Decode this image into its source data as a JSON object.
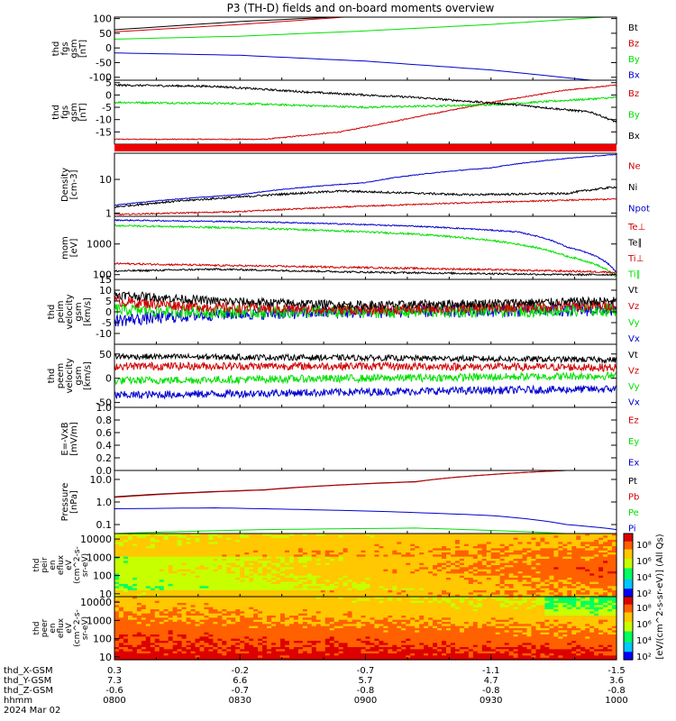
{
  "title": "P3 (TH-D) fields and on-board moments overview",
  "colors": {
    "black": "#000000",
    "red": "#d00000",
    "green": "#00e000",
    "blue": "#0000d0"
  },
  "chart_data": {
    "type": "line",
    "panels": [
      {
        "id": "fgs-gsm-1",
        "ylabel_lines": [
          "thd",
          "fgs",
          "gsm",
          "[nT]"
        ],
        "ylim": [
          -110,
          105
        ],
        "yticks": [
          "100",
          "50",
          "0",
          "-50",
          "-100"
        ],
        "ytick_values": [
          100,
          50,
          0,
          -50,
          -100
        ],
        "legend": [
          {
            "label": "Bt",
            "color": "#000000"
          },
          {
            "label": "Bz",
            "color": "#d00000"
          },
          {
            "label": "By",
            "color": "#00e000"
          },
          {
            "label": "Bx",
            "color": "#0000d0"
          }
        ],
        "series": [
          {
            "color": "#000000",
            "x": [
              0,
              0.25,
              0.5
            ],
            "y": [
              62,
              90,
              110
            ],
            "noise": 0
          },
          {
            "color": "#d00000",
            "x": [
              0,
              0.25,
              0.5
            ],
            "y": [
              55,
              80,
              110
            ],
            "noise": 0
          },
          {
            "color": "#00e000",
            "x": [
              0,
              0.25,
              0.5,
              0.75,
              1
            ],
            "y": [
              30,
              40,
              58,
              80,
              108
            ],
            "noise": 0
          },
          {
            "color": "#0000d0",
            "x": [
              0,
              0.25,
              0.5,
              0.75,
              0.95
            ],
            "y": [
              -17,
              -25,
              -45,
              -75,
              -110
            ],
            "noise": 0
          }
        ]
      },
      {
        "id": "fgs-gsm-2",
        "ylabel_lines": [
          "thd",
          "fgs",
          "gsm",
          "[nT]"
        ],
        "ylim": [
          -20,
          6
        ],
        "yticks": [
          "5",
          "0",
          "-5",
          "-10",
          "-15"
        ],
        "ytick_values": [
          5,
          0,
          -5,
          -10,
          -15
        ],
        "legend": [
          {
            "label": "Bz",
            "color": "#d00000"
          },
          {
            "label": "By",
            "color": "#00e000"
          },
          {
            "label": "Bx",
            "color": "#000000"
          }
        ],
        "series": [
          {
            "color": "#d00000",
            "x": [
              0,
              0.3,
              0.45,
              0.6,
              0.75,
              0.9,
              1
            ],
            "y": [
              -18,
              -18,
              -15,
              -9,
              -3,
              2,
              4
            ],
            "noise": 0.2
          },
          {
            "color": "#00e000",
            "x": [
              0,
              0.25,
              0.5,
              0.75,
              1
            ],
            "y": [
              -3,
              -3.5,
              -5,
              -4,
              -1
            ],
            "noise": 0.4
          },
          {
            "color": "#000000",
            "x": [
              0,
              0.2,
              0.4,
              0.6,
              0.8,
              0.95,
              1
            ],
            "y": [
              4,
              3.5,
              1,
              -1,
              -4,
              -7,
              -11
            ],
            "noise": 0.4
          }
        ]
      },
      {
        "id": "density",
        "ylabel_lines": [
          "Density",
          "[cm-3]"
        ],
        "ylim_log": [
          0.8,
          60
        ],
        "yticks": [
          "10",
          "1"
        ],
        "ytick_values": [
          10,
          1
        ],
        "legend": [
          {
            "label": "Ne",
            "color": "#d00000"
          },
          {
            "label": "Ni",
            "color": "#000000"
          },
          {
            "label": "Npot",
            "color": "#0000d0"
          }
        ],
        "series": [
          {
            "color": "#d00000",
            "x": [
              0,
              0.25,
              0.5,
              0.75,
              1
            ],
            "y": [
              0.9,
              1.1,
              1.6,
              2.1,
              2.6
            ],
            "noise": 0.02
          },
          {
            "color": "#000000",
            "x": [
              0,
              0.25,
              0.45,
              0.7,
              0.9,
              1
            ],
            "y": [
              1.5,
              3,
              4.5,
              3.5,
              3.8,
              6
            ],
            "noise": 0.03
          },
          {
            "color": "#0000d0",
            "x": [
              0,
              0.25,
              0.5,
              0.75,
              1
            ],
            "y": [
              1.7,
              3.5,
              8,
              22,
              55
            ],
            "noise": 0.01
          }
        ]
      },
      {
        "id": "mom-temp",
        "ylabel_lines": [
          "mom",
          "[eV]"
        ],
        "ylim_log": [
          70,
          8000
        ],
        "yticks": [
          "1000",
          "100"
        ],
        "ytick_values": [
          1000,
          100
        ],
        "legend": [
          {
            "label": "Te⊥",
            "color": "#d00000"
          },
          {
            "label": "Te∥",
            "color": "#000000"
          },
          {
            "label": "Ti⊥",
            "color": "#d00000"
          },
          {
            "label": "Ti∥",
            "color": "#00e000"
          }
        ],
        "series": [
          {
            "color": "#0000d0",
            "x": [
              0,
              0.3,
              0.6,
              0.8,
              0.9,
              1
            ],
            "y": [
              6000,
              5200,
              3800,
              2500,
              800,
              110
            ],
            "noise": 0.02
          },
          {
            "color": "#00e000",
            "x": [
              0,
              0.3,
              0.6,
              0.75,
              0.9,
              1
            ],
            "y": [
              4000,
              3200,
              2100,
              1300,
              400,
              80
            ],
            "noise": 0.03
          },
          {
            "color": "#d00000",
            "x": [
              0,
              0.2,
              0.5,
              0.7,
              0.9,
              1
            ],
            "y": [
              230,
              200,
              170,
              150,
              130,
              120
            ],
            "noise": 0.03
          },
          {
            "color": "#000000",
            "x": [
              0,
              0.2,
              0.5,
              0.7,
              0.9,
              1
            ],
            "y": [
              130,
              150,
              120,
              110,
              100,
              100
            ],
            "noise": 0.03
          }
        ]
      },
      {
        "id": "peim-velocity",
        "ylabel_lines": [
          "thd",
          "peim",
          "velocity",
          "gsm",
          "[km/s]"
        ],
        "ylim": [
          -15,
          15
        ],
        "yticks": [
          "15",
          "10",
          "5",
          "0",
          "-5",
          "-10"
        ],
        "ytick_values": [
          15,
          10,
          5,
          0,
          -5,
          -10
        ],
        "legend": [
          {
            "label": "Vt",
            "color": "#000000"
          },
          {
            "label": "Vz",
            "color": "#d00000"
          },
          {
            "label": "Vy",
            "color": "#00e000"
          },
          {
            "label": "Vx",
            "color": "#0000d0"
          }
        ],
        "series": [
          {
            "color": "#0000d0",
            "x": [
              0,
              0.2,
              0.5,
              1
            ],
            "y": [
              -4,
              -1,
              0,
              1
            ],
            "noise": 3
          },
          {
            "color": "#00e000",
            "x": [
              0,
              0.2,
              0.5,
              1
            ],
            "y": [
              1,
              0,
              0,
              1
            ],
            "noise": 3
          },
          {
            "color": "#d00000",
            "x": [
              0,
              0.2,
              0.5,
              1
            ],
            "y": [
              5,
              2,
              1,
              3
            ],
            "noise": 2.5
          },
          {
            "color": "#000000",
            "x": [
              0,
              0.2,
              0.5,
              1
            ],
            "y": [
              8,
              5,
              3,
              5
            ],
            "noise": 2
          }
        ]
      },
      {
        "id": "peem-velocity",
        "ylabel_lines": [
          "thd",
          "peem",
          "velocity",
          "gsm",
          "[km/s]"
        ],
        "ylim": [
          -60,
          70
        ],
        "yticks": [
          "50",
          "0",
          "-50"
        ],
        "ytick_values": [
          50,
          0,
          -50
        ],
        "legend": [
          {
            "label": "Vt",
            "color": "#000000"
          },
          {
            "label": "Vz",
            "color": "#d00000"
          },
          {
            "label": "Vy",
            "color": "#00e000"
          },
          {
            "label": "Vx",
            "color": "#0000d0"
          }
        ],
        "series": [
          {
            "color": "#0000d0",
            "x": [
              0,
              0.5,
              1
            ],
            "y": [
              -35,
              -28,
              -22
            ],
            "noise": 8
          },
          {
            "color": "#00e000",
            "x": [
              0,
              0.5,
              1
            ],
            "y": [
              -5,
              0,
              5
            ],
            "noise": 8
          },
          {
            "color": "#d00000",
            "x": [
              0,
              0.5,
              1
            ],
            "y": [
              25,
              25,
              22
            ],
            "noise": 8
          },
          {
            "color": "#000000",
            "x": [
              0,
              0.5,
              1
            ],
            "y": [
              45,
              42,
              38
            ],
            "noise": 6
          }
        ]
      },
      {
        "id": "efield",
        "ylabel_lines": [
          "E=-VxB",
          "[mV/m]"
        ],
        "ylim": [
          0,
          1
        ],
        "yticks": [
          "1.0",
          "0.8",
          "0.6",
          "0.4",
          "0.2",
          "0.0"
        ],
        "ytick_values": [
          1.0,
          0.8,
          0.6,
          0.4,
          0.2,
          0.0
        ],
        "legend": [
          {
            "label": "Ez",
            "color": "#d00000"
          },
          {
            "label": "Ey",
            "color": "#00e000"
          },
          {
            "label": "Ex",
            "color": "#0000d0"
          }
        ],
        "series": []
      },
      {
        "id": "pressure",
        "ylabel_lines": [
          "Pressure",
          "[nPa]"
        ],
        "ylim_log": [
          0.04,
          25
        ],
        "yticks": [
          "10.0",
          "1.0",
          "0.1"
        ],
        "ytick_values": [
          10,
          1,
          0.1
        ],
        "legend": [
          {
            "label": "Pt",
            "color": "#000000"
          },
          {
            "label": "Pb",
            "color": "#d00000"
          },
          {
            "label": "Pe",
            "color": "#00e000"
          },
          {
            "label": "Pi",
            "color": "#0000d0"
          }
        ],
        "series": [
          {
            "color": "#000000",
            "x": [
              0,
              0.3,
              0.6,
              0.9
            ],
            "y": [
              1.7,
              3.5,
              8,
              25
            ],
            "noise": 0
          },
          {
            "color": "#d00000",
            "x": [
              0,
              0.3,
              0.6,
              0.9
            ],
            "y": [
              1.6,
              3.4,
              7.8,
              25
            ],
            "noise": 0
          },
          {
            "color": "#00e000",
            "x": [
              0,
              0.3,
              0.6,
              0.8,
              1
            ],
            "y": [
              0.04,
              0.06,
              0.07,
              0.05,
              0.03
            ],
            "noise": 0
          },
          {
            "color": "#0000d0",
            "x": [
              0,
              0.2,
              0.5,
              0.75,
              0.9,
              1
            ],
            "y": [
              0.5,
              0.55,
              0.4,
              0.25,
              0.1,
              0.06
            ],
            "noise": 0
          }
        ]
      }
    ],
    "spectra": [
      {
        "id": "peir-en-eflux",
        "ylabel_lines": [
          "thd",
          "peir",
          "en",
          "eflux",
          "eV",
          "(cm^2-s-",
          "sr-eV)"
        ],
        "yticks": [
          "10000",
          "1000",
          "100",
          "10"
        ],
        "ytick_values": [
          10000,
          1000,
          100,
          10
        ],
        "ylim_log": [
          7,
          20000
        ]
      },
      {
        "id": "peer-en-eflux",
        "ylabel_lines": [
          "thd",
          "peer",
          "en",
          "eflux",
          "eV",
          "(cm^2-s-",
          "sr-eV)"
        ],
        "yticks": [
          "10000",
          "1000",
          "100",
          "10"
        ],
        "ytick_values": [
          10000,
          1000,
          100,
          10
        ],
        "ylim_log": [
          7,
          20000
        ]
      }
    ],
    "colorbar": {
      "label": "[eV/(cm^2-s-sr-eV)] (All Qs)",
      "ticks_upper": [
        "10⁸",
        "10⁶",
        "10⁴",
        "10²"
      ],
      "ticks_lower": [
        "10⁸",
        "10⁶",
        "10⁴",
        "10²"
      ]
    },
    "x_axis": {
      "row_labels": [
        "thd_X-GSM",
        "thd_Y-GSM",
        "thd_Z-GSM",
        "hhmm",
        "2024 Mar 02"
      ],
      "tick_values": [
        0,
        0.25,
        0.5,
        0.75,
        1
      ],
      "rows": [
        [
          "0.3",
          "-0.2",
          "-0.7",
          "-1.1",
          "-1.5"
        ],
        [
          "7.3",
          "6.6",
          "5.7",
          "4.7",
          "3.6"
        ],
        [
          "-0.6",
          "-0.7",
          "-0.8",
          "-0.8",
          "-0.8"
        ],
        [
          "0800",
          "0830",
          "0900",
          "0930",
          "1000"
        ]
      ]
    }
  }
}
